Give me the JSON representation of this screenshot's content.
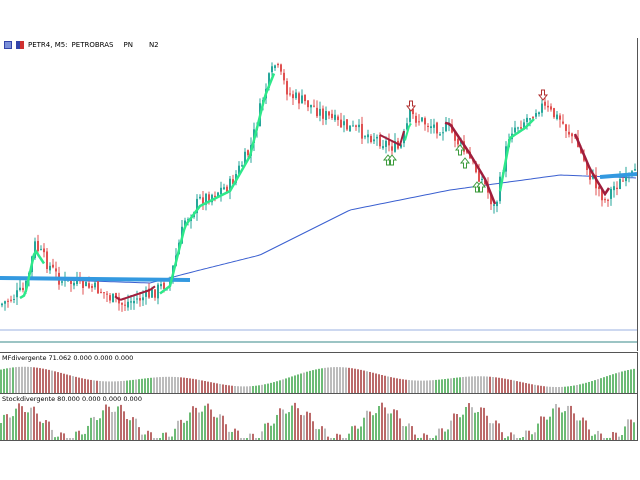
{
  "chart_header": {
    "symbol": "PETR4, M5:",
    "name": "PETROBRAS",
    "type": "PN",
    "level": "N2"
  },
  "indicators": {
    "mf": {
      "label": "MFdivergente 71.062 0.000 0.000 0.000"
    },
    "stoch": {
      "label": "Stockdivergente 80.000 0.000 0.000 0.000"
    }
  },
  "colors": {
    "bull": "#26a69a",
    "bear": "#e05050",
    "ma": "#3a5fd0",
    "trend_up": "#2ee88a",
    "trend_down": "#a01e3c",
    "hist_green": "#2e9e3a",
    "hist_red": "#9e2a2a",
    "hist_gray": "#a0a0a0",
    "signal": "#3a9a3a"
  }
}
